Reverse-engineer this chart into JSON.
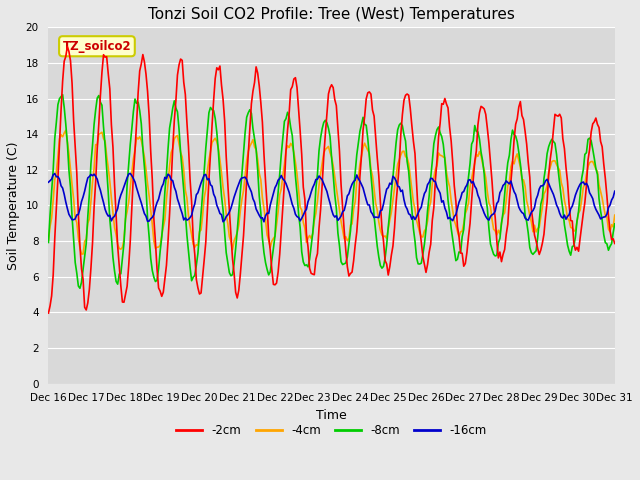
{
  "title": "Tonzi Soil CO2 Profile: Tree (West) Temperatures",
  "xlabel": "Time",
  "ylabel": "Soil Temperature (C)",
  "ylim": [
    0,
    20
  ],
  "xlim": [
    0,
    360
  ],
  "bg_color": "#d9d9d9",
  "fig_bg": "#e8e8e8",
  "legend_label": "TZ_soilco2",
  "legend_bg": "#ffffcc",
  "legend_edge": "#cccc00",
  "series": {
    "-2cm": {
      "color": "#ff0000",
      "lw": 1.2
    },
    "-4cm": {
      "color": "#ffa500",
      "lw": 1.2
    },
    "-8cm": {
      "color": "#00cc00",
      "lw": 1.2
    },
    "-16cm": {
      "color": "#0000cc",
      "lw": 1.2
    }
  },
  "xtick_positions": [
    0,
    24,
    48,
    72,
    96,
    120,
    144,
    168,
    192,
    216,
    240,
    264,
    288,
    312,
    336,
    360
  ],
  "xtick_labels": [
    "Dec 16",
    "Dec 17",
    "Dec 18",
    "Dec 19",
    "Dec 20",
    "Dec 21",
    "Dec 22",
    "Dec 23",
    "Dec 24",
    "Dec 25",
    "Dec 26",
    "Dec 27",
    "Dec 28",
    "Dec 29",
    "Dec 30",
    "Dec 31"
  ],
  "ytick_positions": [
    0,
    2,
    4,
    6,
    8,
    10,
    12,
    14,
    16,
    18,
    20
  ],
  "grid_color": "#ffffff",
  "title_fontsize": 11,
  "axis_label_fontsize": 9,
  "tick_fontsize": 7.5
}
